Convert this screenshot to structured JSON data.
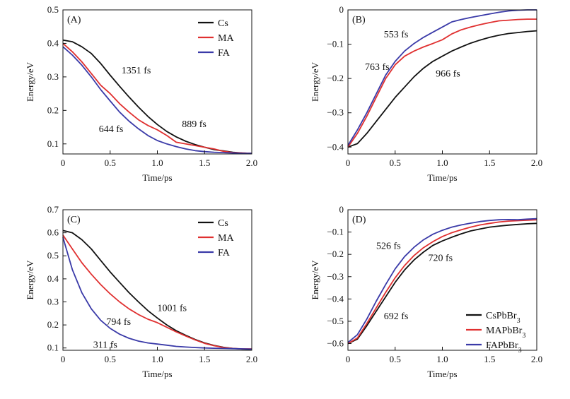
{
  "chart_data": [
    {
      "panel": "(A)",
      "type": "line",
      "xlabel": "Time/ps",
      "ylabel": "Energy/eV",
      "xlim": [
        0,
        2.0
      ],
      "ylim": [
        0.07,
        0.5
      ],
      "xticks": [
        0,
        0.5,
        1.0,
        1.5,
        2.0
      ],
      "xtick_labels": [
        "0",
        "0.5",
        "1.0",
        "1.5",
        "2.0"
      ],
      "yticks": [
        0.1,
        0.2,
        0.3,
        0.4,
        0.5
      ],
      "ytick_labels": [
        "0.1",
        "0.2",
        "0.3",
        "0.4",
        "0.5"
      ],
      "legend": [
        "Cs",
        "MA",
        "FA"
      ],
      "legend_position": "top-right",
      "series": [
        {
          "name": "Cs",
          "color": "#111111",
          "x": [
            0,
            0.1,
            0.2,
            0.3,
            0.4,
            0.5,
            0.6,
            0.7,
            0.8,
            0.9,
            1.0,
            1.1,
            1.2,
            1.3,
            1.4,
            1.5,
            1.6,
            1.7,
            1.8,
            1.9,
            2.0
          ],
          "y": [
            0.41,
            0.405,
            0.39,
            0.37,
            0.34,
            0.305,
            0.272,
            0.24,
            0.21,
            0.182,
            0.158,
            0.137,
            0.121,
            0.108,
            0.098,
            0.09,
            0.083,
            0.079,
            0.075,
            0.073,
            0.072
          ]
        },
        {
          "name": "MA",
          "color": "#e03030",
          "x": [
            0,
            0.1,
            0.2,
            0.3,
            0.4,
            0.5,
            0.6,
            0.7,
            0.8,
            0.9,
            1.0,
            1.1,
            1.2,
            1.3,
            1.4,
            1.5,
            1.6,
            1.7,
            1.8,
            1.9,
            2.0
          ],
          "y": [
            0.4,
            0.375,
            0.345,
            0.31,
            0.275,
            0.25,
            0.22,
            0.195,
            0.172,
            0.155,
            0.142,
            0.125,
            0.105,
            0.1,
            0.095,
            0.09,
            0.085,
            0.078,
            0.074,
            0.073,
            0.072
          ]
        },
        {
          "name": "FA",
          "color": "#3a3aa8",
          "x": [
            0,
            0.1,
            0.2,
            0.3,
            0.4,
            0.5,
            0.6,
            0.7,
            0.8,
            0.9,
            1.0,
            1.1,
            1.2,
            1.3,
            1.4,
            1.5,
            1.6,
            1.7,
            1.8,
            1.9,
            2.0
          ],
          "y": [
            0.39,
            0.365,
            0.335,
            0.3,
            0.262,
            0.228,
            0.195,
            0.168,
            0.145,
            0.125,
            0.11,
            0.1,
            0.092,
            0.085,
            0.08,
            0.077,
            0.075,
            0.074,
            0.073,
            0.072,
            0.072
          ]
        }
      ],
      "annotations": [
        {
          "text": "1351 fs",
          "x": 0.62,
          "y": 0.31
        },
        {
          "text": "889 fs",
          "x": 1.26,
          "y": 0.15
        },
        {
          "text": "644 fs",
          "x": 0.38,
          "y": 0.135
        }
      ]
    },
    {
      "panel": "(B)",
      "type": "line",
      "xlabel": "Time/ps",
      "ylabel": "Energy/eV",
      "xlim": [
        0,
        2.0
      ],
      "ylim": [
        -0.42,
        0
      ],
      "xticks": [
        0,
        0.5,
        1.0,
        1.5,
        2.0
      ],
      "xtick_labels": [
        "0",
        "0.5",
        "1.0",
        "1.5",
        "2.0"
      ],
      "yticks": [
        -0.4,
        -0.3,
        -0.2,
        -0.1,
        0
      ],
      "ytick_labels": [
        "−0.4",
        "−0.3",
        "−0.2",
        "−0.1",
        "0"
      ],
      "legend": [],
      "series": [
        {
          "name": "Cs",
          "color": "#111111",
          "x": [
            0,
            0.1,
            0.2,
            0.3,
            0.4,
            0.5,
            0.6,
            0.7,
            0.8,
            0.9,
            1.0,
            1.1,
            1.2,
            1.3,
            1.4,
            1.5,
            1.6,
            1.7,
            1.8,
            1.9,
            2.0
          ],
          "y": [
            -0.4,
            -0.39,
            -0.36,
            -0.325,
            -0.29,
            -0.255,
            -0.225,
            -0.195,
            -0.17,
            -0.15,
            -0.135,
            -0.12,
            -0.108,
            -0.097,
            -0.088,
            -0.08,
            -0.074,
            -0.069,
            -0.066,
            -0.063,
            -0.061
          ]
        },
        {
          "name": "MA",
          "color": "#e03030",
          "x": [
            0,
            0.1,
            0.2,
            0.3,
            0.4,
            0.5,
            0.6,
            0.7,
            0.8,
            0.9,
            1.0,
            1.1,
            1.2,
            1.3,
            1.4,
            1.5,
            1.6,
            1.7,
            1.8,
            1.9,
            2.0
          ],
          "y": [
            -0.4,
            -0.36,
            -0.31,
            -0.255,
            -0.2,
            -0.16,
            -0.135,
            -0.12,
            -0.108,
            -0.098,
            -0.087,
            -0.07,
            -0.058,
            -0.05,
            -0.043,
            -0.037,
            -0.032,
            -0.03,
            -0.028,
            -0.027,
            -0.027
          ]
        },
        {
          "name": "FA",
          "color": "#3a3aa8",
          "x": [
            0,
            0.1,
            0.2,
            0.3,
            0.4,
            0.5,
            0.6,
            0.7,
            0.8,
            0.9,
            1.0,
            1.1,
            1.2,
            1.3,
            1.4,
            1.5,
            1.6,
            1.7,
            1.8,
            1.9,
            2.0
          ],
          "y": [
            -0.395,
            -0.35,
            -0.3,
            -0.245,
            -0.19,
            -0.15,
            -0.12,
            -0.098,
            -0.08,
            -0.065,
            -0.05,
            -0.035,
            -0.028,
            -0.022,
            -0.017,
            -0.012,
            -0.007,
            -0.003,
            -0.001,
            0.0,
            0.0
          ]
        }
      ],
      "annotations": [
        {
          "text": "553 fs",
          "x": 0.38,
          "y": -0.08
        },
        {
          "text": "763 fs",
          "x": 0.18,
          "y": -0.175
        },
        {
          "text": "966 fs",
          "x": 0.93,
          "y": -0.195
        }
      ]
    },
    {
      "panel": "(C)",
      "type": "line",
      "xlabel": "Time/ps",
      "ylabel": "Energy/eV",
      "xlim": [
        0,
        2.0
      ],
      "ylim": [
        0.09,
        0.7
      ],
      "xticks": [
        0,
        0.5,
        1.0,
        1.5,
        2.0
      ],
      "xtick_labels": [
        "0",
        "0.5",
        "1.0",
        "1.5",
        "2.0"
      ],
      "yticks": [
        0.1,
        0.2,
        0.3,
        0.4,
        0.5,
        0.6,
        0.7
      ],
      "ytick_labels": [
        "0.1",
        "0.2",
        "0.3",
        "0.4",
        "0.5",
        "0.6",
        "0.7"
      ],
      "legend": [
        "Cs",
        "MA",
        "FA"
      ],
      "legend_position": "top-right",
      "series": [
        {
          "name": "Cs",
          "color": "#111111",
          "x": [
            0,
            0.1,
            0.2,
            0.3,
            0.4,
            0.5,
            0.6,
            0.7,
            0.8,
            0.9,
            1.0,
            1.1,
            1.2,
            1.3,
            1.4,
            1.5,
            1.6,
            1.7,
            1.8,
            1.9,
            2.0
          ],
          "y": [
            0.61,
            0.6,
            0.57,
            0.53,
            0.48,
            0.43,
            0.385,
            0.34,
            0.3,
            0.262,
            0.23,
            0.2,
            0.175,
            0.155,
            0.137,
            0.122,
            0.111,
            0.103,
            0.098,
            0.095,
            0.094
          ]
        },
        {
          "name": "MA",
          "color": "#e03030",
          "x": [
            0,
            0.1,
            0.2,
            0.3,
            0.4,
            0.5,
            0.6,
            0.7,
            0.8,
            0.9,
            1.0,
            1.1,
            1.2,
            1.3,
            1.4,
            1.5,
            1.6,
            1.7,
            1.8,
            1.9,
            2.0
          ],
          "y": [
            0.59,
            0.53,
            0.47,
            0.42,
            0.375,
            0.335,
            0.3,
            0.27,
            0.245,
            0.225,
            0.21,
            0.19,
            0.17,
            0.152,
            0.135,
            0.12,
            0.11,
            0.102,
            0.098,
            0.096,
            0.096
          ]
        },
        {
          "name": "FA",
          "color": "#3a3aa8",
          "x": [
            0,
            0.1,
            0.2,
            0.3,
            0.4,
            0.5,
            0.6,
            0.7,
            0.8,
            0.9,
            1.0,
            1.1,
            1.2,
            1.3,
            1.4,
            1.5,
            1.6,
            1.7,
            1.8,
            1.9,
            2.0
          ],
          "y": [
            0.58,
            0.44,
            0.34,
            0.27,
            0.22,
            0.185,
            0.16,
            0.142,
            0.13,
            0.122,
            0.117,
            0.112,
            0.107,
            0.104,
            0.102,
            0.1,
            0.099,
            0.098,
            0.097,
            0.096,
            0.095
          ]
        }
      ],
      "annotations": [
        {
          "text": "1001 fs",
          "x": 1.0,
          "y": 0.26
        },
        {
          "text": "794 fs",
          "x": 0.46,
          "y": 0.2
        },
        {
          "text": "311 fs",
          "x": 0.32,
          "y": 0.1
        }
      ]
    },
    {
      "panel": "(D)",
      "type": "line",
      "xlabel": "Time/ps",
      "ylabel": "Energy/eV",
      "xlim": [
        0,
        2.0
      ],
      "ylim": [
        -0.63,
        0
      ],
      "xticks": [
        0,
        0.5,
        1.0,
        1.5,
        2.0
      ],
      "xtick_labels": [
        "0",
        "0.5",
        "1.0",
        "1.5",
        "2.0"
      ],
      "yticks": [
        -0.6,
        -0.5,
        -0.4,
        -0.3,
        -0.2,
        -0.1,
        0
      ],
      "ytick_labels": [
        "−0.6",
        "−0.5",
        "−0.4",
        "−0.3",
        "−0.2",
        "−0.1",
        "0"
      ],
      "legend": [
        "CsPbBr3",
        "MAPbBr3",
        "FAPbBr3"
      ],
      "legend_position": "bottom-right",
      "series": [
        {
          "name": "CsPbBr3",
          "color": "#111111",
          "x": [
            0,
            0.1,
            0.2,
            0.3,
            0.4,
            0.5,
            0.6,
            0.7,
            0.8,
            0.9,
            1.0,
            1.1,
            1.2,
            1.3,
            1.4,
            1.5,
            1.6,
            1.7,
            1.8,
            1.9,
            2.0
          ],
          "y": [
            -0.6,
            -0.58,
            -0.52,
            -0.455,
            -0.39,
            -0.325,
            -0.27,
            -0.225,
            -0.19,
            -0.16,
            -0.14,
            -0.123,
            -0.108,
            -0.095,
            -0.086,
            -0.078,
            -0.073,
            -0.069,
            -0.066,
            -0.063,
            -0.061
          ]
        },
        {
          "name": "MAPbBr3",
          "color": "#e03030",
          "x": [
            0,
            0.1,
            0.2,
            0.3,
            0.4,
            0.5,
            0.6,
            0.7,
            0.8,
            0.9,
            1.0,
            1.1,
            1.2,
            1.3,
            1.4,
            1.5,
            1.6,
            1.7,
            1.8,
            1.9,
            2.0
          ],
          "y": [
            -0.6,
            -0.575,
            -0.51,
            -0.44,
            -0.37,
            -0.305,
            -0.25,
            -0.205,
            -0.17,
            -0.143,
            -0.12,
            -0.103,
            -0.09,
            -0.078,
            -0.068,
            -0.061,
            -0.055,
            -0.051,
            -0.049,
            -0.047,
            -0.045
          ]
        },
        {
          "name": "FAPbBr3",
          "color": "#3a3aa8",
          "x": [
            0,
            0.1,
            0.2,
            0.3,
            0.4,
            0.5,
            0.6,
            0.7,
            0.8,
            0.9,
            1.0,
            1.1,
            1.2,
            1.3,
            1.4,
            1.5,
            1.6,
            1.7,
            1.8,
            1.9,
            2.0
          ],
          "y": [
            -0.595,
            -0.56,
            -0.49,
            -0.41,
            -0.335,
            -0.265,
            -0.21,
            -0.168,
            -0.135,
            -0.11,
            -0.092,
            -0.078,
            -0.068,
            -0.06,
            -0.053,
            -0.048,
            -0.045,
            -0.044,
            -0.045,
            -0.042,
            -0.04
          ]
        }
      ],
      "annotations": [
        {
          "text": "526 fs",
          "x": 0.3,
          "y": -0.175
        },
        {
          "text": "720 fs",
          "x": 0.85,
          "y": -0.23
        },
        {
          "text": "692 fs",
          "x": 0.38,
          "y": -0.49
        }
      ]
    }
  ]
}
